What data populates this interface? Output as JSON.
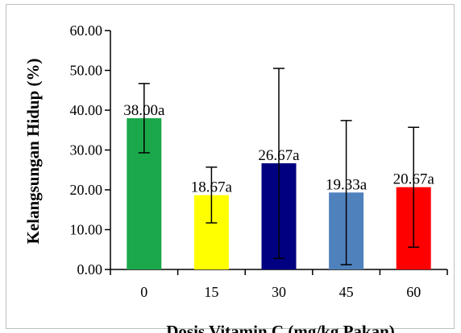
{
  "chart_data": {
    "type": "bar",
    "title": "",
    "xlabel": "Dosis Vitamin C (mg/kg Pakan)",
    "ylabel": "Kelangsungan Hidup (%)",
    "ylim": [
      0,
      60
    ],
    "yticks": [
      "0.00",
      "10.00",
      "20.00",
      "30.00",
      "40.00",
      "50.00",
      "60.00"
    ],
    "categories": [
      "0",
      "15",
      "30",
      "45",
      "60"
    ],
    "values": [
      38.0,
      18.67,
      26.67,
      19.33,
      20.67
    ],
    "error_low": [
      29.3,
      11.7,
      2.8,
      1.2,
      5.6
    ],
    "error_high": [
      46.7,
      25.7,
      50.5,
      37.4,
      35.7
    ],
    "data_labels": [
      "38.00a",
      "18.67a",
      "26.67a",
      "19.33a",
      "20.67a"
    ],
    "colors": [
      "#1aa84a",
      "#ffff00",
      "#000080",
      "#4f81bd",
      "#ff0000"
    ],
    "grid": false,
    "legend": "none"
  }
}
